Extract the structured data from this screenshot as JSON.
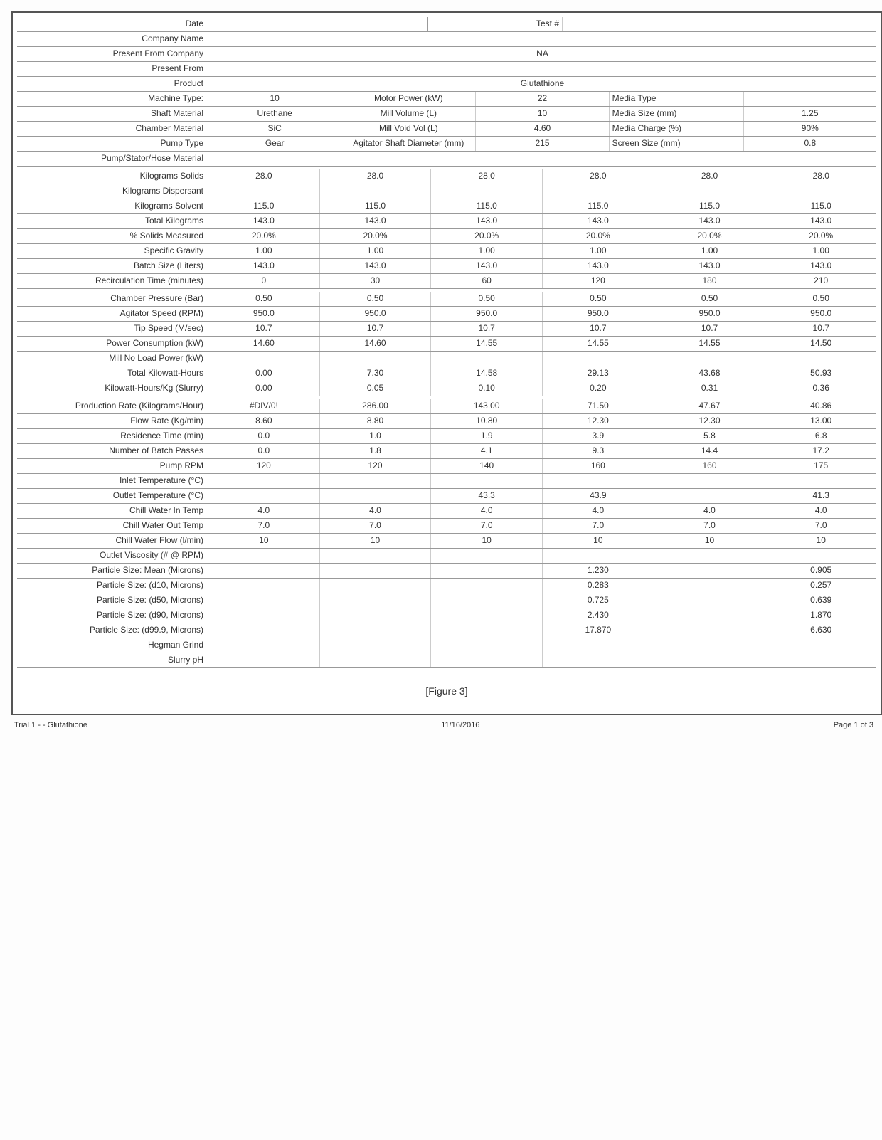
{
  "header": {
    "date_label": "Date",
    "date_value": "",
    "test_label": "Test #",
    "test_value": "",
    "company_label": "Company Name",
    "company_value": "",
    "present_company_label": "Present From Company",
    "present_company_value": "NA",
    "present_from_label": "Present From",
    "present_from_value": "",
    "product_label": "Product",
    "product_value": "Glutathione"
  },
  "machine": {
    "machine_type_label": "Machine Type:",
    "machine_type": "10",
    "motor_power_label": "Motor Power (kW)",
    "motor_power": "22",
    "media_type_label": "Media Type",
    "media_type": "",
    "shaft_material_label": "Shaft Material",
    "shaft_material": "Urethane",
    "mill_volume_label": "Mill Volume (L)",
    "mill_volume": "10",
    "media_size_label": "Media Size (mm)",
    "media_size": "1.25",
    "chamber_material_label": "Chamber Material",
    "chamber_material": "SiC",
    "mill_void_label": "Mill Void Vol (L)",
    "mill_void": "4.60",
    "media_charge_label": "Media Charge (%)",
    "media_charge": "90%",
    "pump_type_label": "Pump Type",
    "pump_type": "Gear",
    "agitator_diam_label": "Agitator Shaft Diameter (mm)",
    "agitator_diam": "215",
    "screen_size_label": "Screen Size (mm)",
    "screen_size": "0.8",
    "pump_hose_label": "Pump/Stator/Hose Material",
    "pump_hose": ""
  },
  "rows": {
    "kgsolids": {
      "label": "Kilograms Solids",
      "v": [
        "28.0",
        "28.0",
        "28.0",
        "28.0",
        "28.0",
        "28.0"
      ]
    },
    "kgdisp": {
      "label": "Kilograms Dispersant",
      "v": [
        "",
        "",
        "",
        "",
        "",
        ""
      ]
    },
    "kgsolv": {
      "label": "Kilograms Solvent",
      "v": [
        "115.0",
        "115.0",
        "115.0",
        "115.0",
        "115.0",
        "115.0"
      ]
    },
    "totalkg": {
      "label": "Total Kilograms",
      "v": [
        "143.0",
        "143.0",
        "143.0",
        "143.0",
        "143.0",
        "143.0"
      ]
    },
    "pctsolids": {
      "label": "% Solids Measured",
      "v": [
        "20.0%",
        "20.0%",
        "20.0%",
        "20.0%",
        "20.0%",
        "20.0%"
      ]
    },
    "sg": {
      "label": "Specific Gravity",
      "v": [
        "1.00",
        "1.00",
        "1.00",
        "1.00",
        "1.00",
        "1.00"
      ]
    },
    "batch": {
      "label": "Batch Size (Liters)",
      "v": [
        "143.0",
        "143.0",
        "143.0",
        "143.0",
        "143.0",
        "143.0"
      ]
    },
    "recirc": {
      "label": "Recirculation Time (minutes)",
      "v": [
        "0",
        "30",
        "60",
        "120",
        "180",
        "210"
      ]
    },
    "press": {
      "label": "Chamber Pressure (Bar)",
      "v": [
        "0.50",
        "0.50",
        "0.50",
        "0.50",
        "0.50",
        "0.50"
      ]
    },
    "rpm": {
      "label": "Agitator Speed (RPM)",
      "v": [
        "950.0",
        "950.0",
        "950.0",
        "950.0",
        "950.0",
        "950.0"
      ]
    },
    "tip": {
      "label": "Tip Speed (M/sec)",
      "v": [
        "10.7",
        "10.7",
        "10.7",
        "10.7",
        "10.7",
        "10.7"
      ]
    },
    "power": {
      "label": "Power Consumption (kW)",
      "v": [
        "14.60",
        "14.60",
        "14.55",
        "14.55",
        "14.55",
        "14.50"
      ]
    },
    "noload": {
      "label": "Mill No Load Power (kW)",
      "v": [
        "",
        "",
        "",
        "",
        "",
        ""
      ]
    },
    "totkwh": {
      "label": "Total Kilowatt-Hours",
      "v": [
        "0.00",
        "7.30",
        "14.58",
        "29.13",
        "43.68",
        "50.93"
      ]
    },
    "kwhkg": {
      "label": "Kilowatt-Hours/Kg (Slurry)",
      "v": [
        "0.00",
        "0.05",
        "0.10",
        "0.20",
        "0.31",
        "0.36"
      ]
    },
    "prodrate": {
      "label": "Production Rate (Kilograms/Hour)",
      "v": [
        "#DIV/0!",
        "286.00",
        "143.00",
        "71.50",
        "47.67",
        "40.86"
      ]
    },
    "flowrate": {
      "label": "Flow  Rate (Kg/min)",
      "v": [
        "8.60",
        "8.80",
        "10.80",
        "12.30",
        "12.30",
        "13.00"
      ]
    },
    "restime": {
      "label": "Residence Time (min)",
      "v": [
        "0.0",
        "1.0",
        "1.9",
        "3.9",
        "5.8",
        "6.8"
      ]
    },
    "passes": {
      "label": "Number of Batch Passes",
      "v": [
        "0.0",
        "1.8",
        "4.1",
        "9.3",
        "14.4",
        "17.2"
      ]
    },
    "pumprpm": {
      "label": "Pump  RPM",
      "v": [
        "120",
        "120",
        "140",
        "160",
        "160",
        "175"
      ]
    },
    "inlettemp": {
      "label": "Inlet Temperature (°C)",
      "v": [
        "",
        "",
        "",
        "",
        "",
        ""
      ]
    },
    "outlettemp": {
      "label": "Outlet Temperature (°C)",
      "v": [
        "",
        "",
        "43.3",
        "43.9",
        "",
        "41.3"
      ]
    },
    "chillin": {
      "label": "Chill Water In Temp",
      "v": [
        "4.0",
        "4.0",
        "4.0",
        "4.0",
        "4.0",
        "4.0"
      ]
    },
    "chillout": {
      "label": "Chill Water Out Temp",
      "v": [
        "7.0",
        "7.0",
        "7.0",
        "7.0",
        "7.0",
        "7.0"
      ]
    },
    "chillflow": {
      "label": "Chill Water Flow (l/min)",
      "v": [
        "10",
        "10",
        "10",
        "10",
        "10",
        "10"
      ]
    },
    "visc": {
      "label": "Outlet Viscosity  (#   @    RPM)",
      "v": [
        "",
        "",
        "",
        "",
        "",
        ""
      ]
    },
    "psmean": {
      "label": "Particle Size: Mean (Microns)",
      "v": [
        "",
        "",
        "",
        "1.230",
        "",
        "0.905"
      ]
    },
    "psd10": {
      "label": "Particle Size: (d10, Microns)",
      "v": [
        "",
        "",
        "",
        "0.283",
        "",
        "0.257"
      ]
    },
    "psd50": {
      "label": "Particle Size: (d50, Microns)",
      "v": [
        "",
        "",
        "",
        "0.725",
        "",
        "0.639"
      ]
    },
    "psd90": {
      "label": "Particle Size: (d90, Microns)",
      "v": [
        "",
        "",
        "",
        "2.430",
        "",
        "1.870"
      ]
    },
    "psd999": {
      "label": "Particle Size: (d99.9, Microns)",
      "v": [
        "",
        "",
        "",
        "17.870",
        "",
        "6.630"
      ]
    },
    "hegman": {
      "label": "Hegman Grind",
      "v": [
        "",
        "",
        "",
        "",
        "",
        ""
      ]
    },
    "slurryph": {
      "label": "Slurry pH",
      "v": [
        "",
        "",
        "",
        "",
        "",
        ""
      ]
    }
  },
  "figure_caption": "[Figure 3]",
  "footer": {
    "left": "Trial 1 -          - Glutathione",
    "center": "11/16/2016",
    "right": "Page 1 of 3"
  }
}
